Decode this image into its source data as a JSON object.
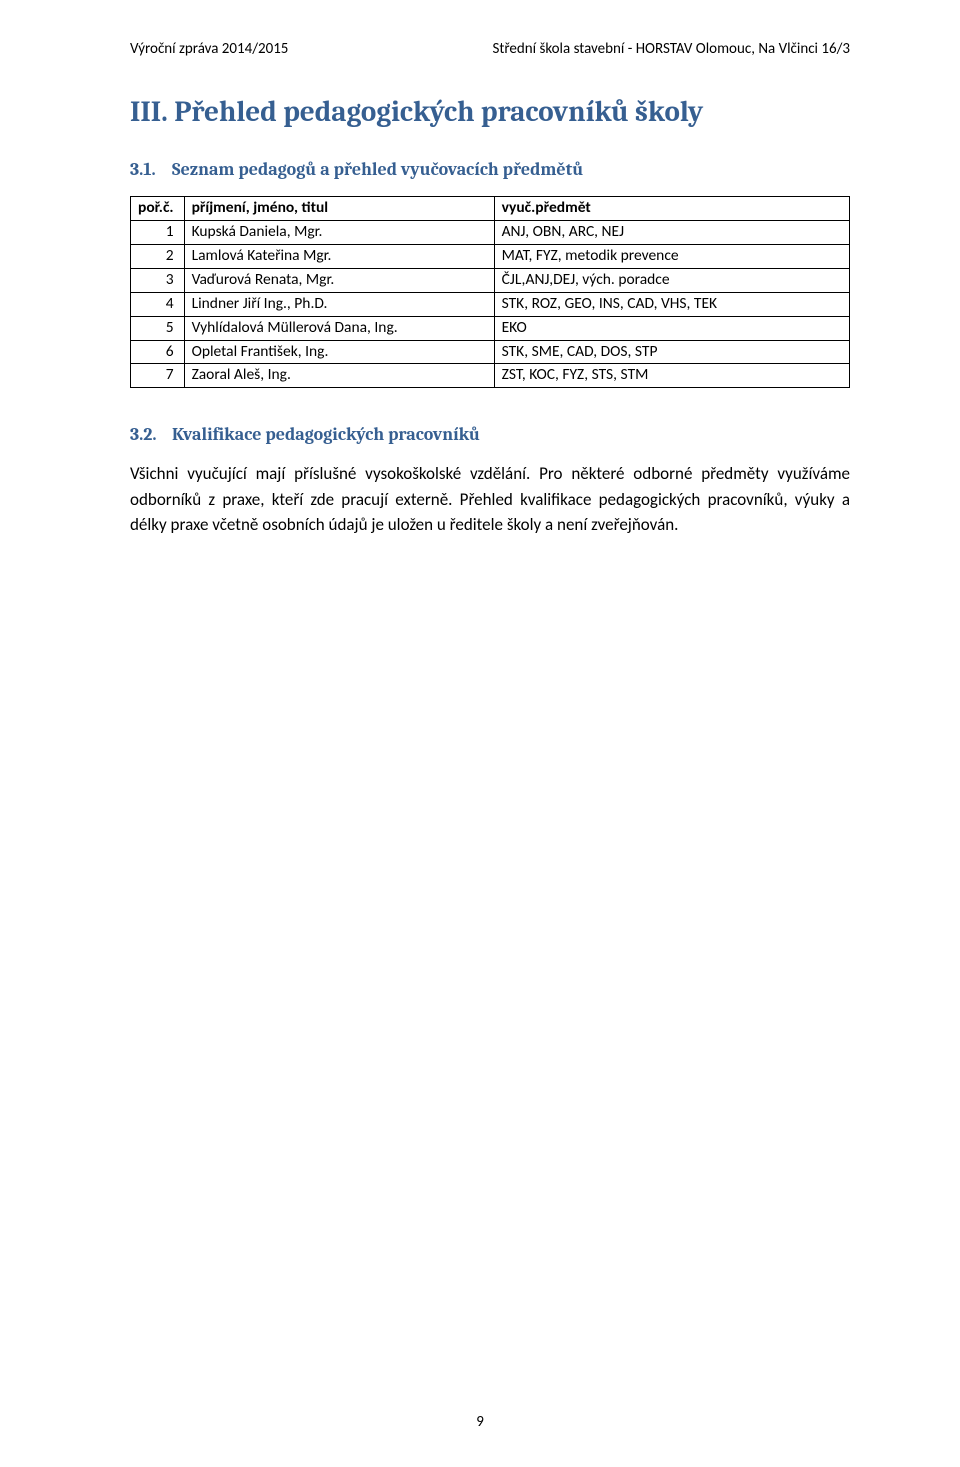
{
  "header": {
    "left": "Výroční zpráva 2014/2015",
    "right": "Střední škola stavební - HORSTAV Olomouc, Na Vlčinci 16/3"
  },
  "section": {
    "title": "III. Přehled pedagogických pracovníků školy"
  },
  "sub1": {
    "num": "3.1.",
    "title": "Seznam pedagogů a přehled vyučovacích předmětů"
  },
  "table": {
    "headers": {
      "num": "poř.č.",
      "name": "příjmení, jméno, titul",
      "subj": "vyuč.předmět"
    },
    "rows": [
      {
        "n": "1",
        "name": "Kupská Daniela, Mgr.",
        "subj": "ANJ, OBN, ARC, NEJ"
      },
      {
        "n": "2",
        "name": "Lamlová Kateřina Mgr.",
        "subj": "MAT, FYZ, metodik prevence"
      },
      {
        "n": "3",
        "name": "Vaďurová Renata, Mgr.",
        "subj": "ČJL,ANJ,DEJ, vých. poradce"
      },
      {
        "n": "4",
        "name": "Lindner Jiří Ing., Ph.D.",
        "subj": "STK, ROZ, GEO, INS, CAD, VHS, TEK"
      },
      {
        "n": "5",
        "name": "Vyhlídalová Müllerová Dana, Ing.",
        "subj": "EKO"
      },
      {
        "n": "6",
        "name": "Opletal František, Ing.",
        "subj": "STK, SME, CAD, DOS, STP"
      },
      {
        "n": "7",
        "name": "Zaoral Aleš, Ing.",
        "subj": "ZST, KOC, FYZ, STS, STM"
      }
    ]
  },
  "sub2": {
    "num": "3.2.",
    "title": "Kvalifikace pedagogických pracovníků"
  },
  "paragraph": "Všichni vyučující mají příslušné vysokoškolské vzdělání. Pro některé odborné předměty využíváme odborníků z praxe, kteří zde pracují externě. Přehled kvalifikace pedagogických pracovníků, výuky a délky praxe včetně osobních údajů je uložen u ředitele školy a není zveřejňován.",
  "page_number": "9"
}
